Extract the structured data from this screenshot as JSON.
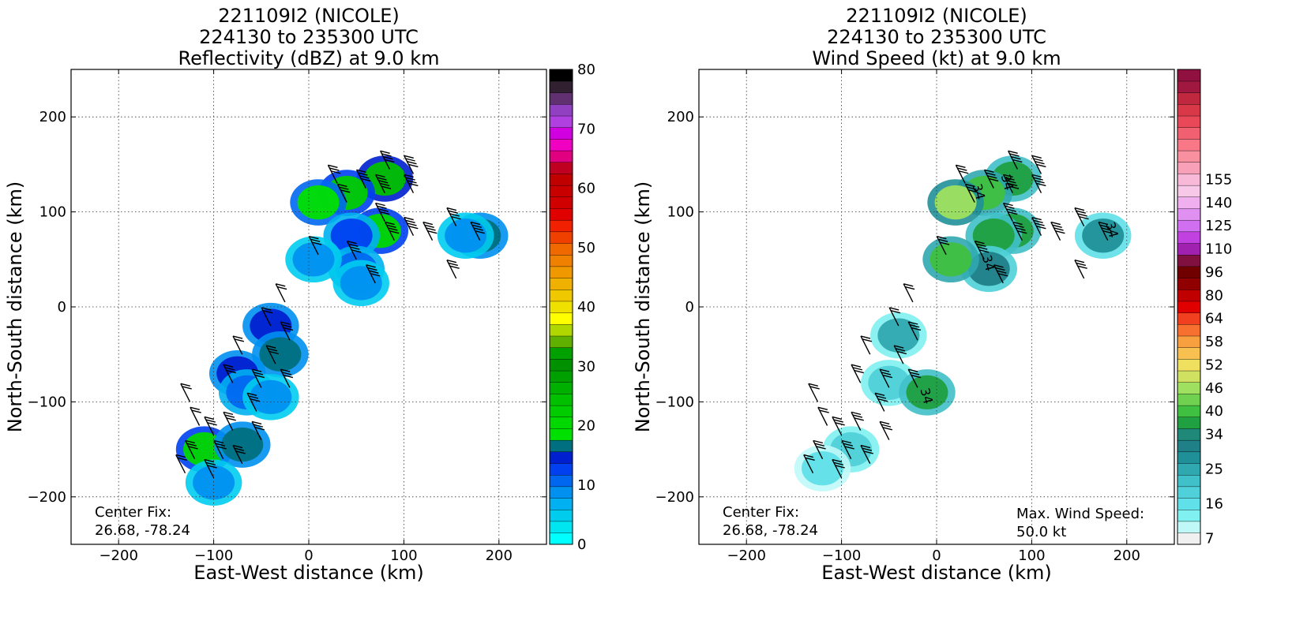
{
  "chart_data": [
    {
      "type": "heatmap",
      "title": [
        "221109I2 (NICOLE)",
        "224130 to 235300 UTC",
        "Reflectivity (dBZ) at 9.0 km"
      ],
      "xlabel": "East-West distance (km)",
      "ylabel": "North-South distance (km)",
      "xlim": [
        -250,
        250
      ],
      "ylim": [
        -250,
        250
      ],
      "xticks": [
        -200,
        -100,
        0,
        100,
        200
      ],
      "yticks": [
        -200,
        -100,
        0,
        100,
        200
      ],
      "xtick_labels": [
        "−200",
        "−100",
        "0",
        "100",
        "200"
      ],
      "ytick_labels": [
        "−200",
        "−100",
        "0",
        "100",
        "200"
      ],
      "grid": true,
      "annotations": [
        "Center Fix:",
        "26.68, -78.24"
      ],
      "colorbar": {
        "min": 0,
        "max": 80,
        "ticks": [
          0,
          10,
          20,
          30,
          40,
          50,
          60,
          70,
          80
        ],
        "labels": [
          "0",
          "10",
          "20",
          "30",
          "40",
          "50",
          "60",
          "70",
          "80"
        ],
        "colors": [
          "#00ffff",
          "#00e6f0",
          "#00ccee",
          "#00b0f0",
          "#0090f0",
          "#0068f0",
          "#0040f0",
          "#0020d0",
          "#007080",
          "#00e000",
          "#00d800",
          "#00cc00",
          "#00c000",
          "#00b000",
          "#00a000",
          "#009000",
          "#00a000",
          "#60b000",
          "#b0d800",
          "#ffff00",
          "#f0e000",
          "#f0c800",
          "#f0b000",
          "#f09800",
          "#f08000",
          "#f06800",
          "#f04000",
          "#f02000",
          "#e00000",
          "#d00000",
          "#c80000",
          "#c00000",
          "#c00020",
          "#e00080",
          "#f000c0",
          "#d000e0",
          "#b040e0",
          "#9040c0",
          "#603070",
          "#302030",
          "#000000"
        ]
      },
      "regions": [
        {
          "x": 80,
          "y": 135,
          "v": 25
        },
        {
          "x": 40,
          "y": 120,
          "v": 22
        },
        {
          "x": 10,
          "y": 110,
          "v": 18
        },
        {
          "x": 75,
          "y": 80,
          "v": 20
        },
        {
          "x": 45,
          "y": 75,
          "v": 12
        },
        {
          "x": 180,
          "y": 75,
          "v": 16
        },
        {
          "x": 165,
          "y": 75,
          "v": 8
        },
        {
          "x": 50,
          "y": 40,
          "v": 10
        },
        {
          "x": 55,
          "y": 25,
          "v": 8
        },
        {
          "x": 5,
          "y": 50,
          "v": 8
        },
        {
          "x": -40,
          "y": -20,
          "v": 14
        },
        {
          "x": -30,
          "y": -50,
          "v": 16
        },
        {
          "x": -75,
          "y": -70,
          "v": 14
        },
        {
          "x": -65,
          "y": -90,
          "v": 10
        },
        {
          "x": -40,
          "y": -95,
          "v": 8
        },
        {
          "x": -110,
          "y": -150,
          "v": 20
        },
        {
          "x": -70,
          "y": -145,
          "v": 16
        },
        {
          "x": -100,
          "y": -185,
          "v": 8
        }
      ],
      "barbs": [
        {
          "x": 85,
          "y": 145,
          "s": 40
        },
        {
          "x": 110,
          "y": 140,
          "s": 40
        },
        {
          "x": 110,
          "y": 120,
          "s": 40
        },
        {
          "x": 80,
          "y": 120,
          "s": 45
        },
        {
          "x": 60,
          "y": 125,
          "s": 40
        },
        {
          "x": 30,
          "y": 130,
          "s": 30
        },
        {
          "x": 40,
          "y": 110,
          "s": 30
        },
        {
          "x": 80,
          "y": 90,
          "s": 40
        },
        {
          "x": 90,
          "y": 70,
          "s": 35
        },
        {
          "x": 110,
          "y": 75,
          "s": 35
        },
        {
          "x": 130,
          "y": 70,
          "s": 35
        },
        {
          "x": 155,
          "y": 85,
          "s": 35
        },
        {
          "x": 180,
          "y": 70,
          "s": 40
        },
        {
          "x": 50,
          "y": 50,
          "s": 35
        },
        {
          "x": 70,
          "y": 25,
          "s": 35
        },
        {
          "x": 10,
          "y": 55,
          "s": 30
        },
        {
          "x": 155,
          "y": 30,
          "s": 30
        },
        {
          "x": -25,
          "y": 5,
          "s": 20
        },
        {
          "x": -40,
          "y": -20,
          "s": 20
        },
        {
          "x": -20,
          "y": -35,
          "s": 25
        },
        {
          "x": -35,
          "y": -60,
          "s": 25
        },
        {
          "x": -70,
          "y": -50,
          "s": 20
        },
        {
          "x": -80,
          "y": -80,
          "s": 25
        },
        {
          "x": -50,
          "y": -85,
          "s": 25
        },
        {
          "x": -20,
          "y": -85,
          "s": 25
        },
        {
          "x": -55,
          "y": -110,
          "s": 25
        },
        {
          "x": -125,
          "y": -100,
          "s": 20
        },
        {
          "x": -115,
          "y": -125,
          "s": 20
        },
        {
          "x": -100,
          "y": -135,
          "s": 25
        },
        {
          "x": -80,
          "y": -130,
          "s": 25
        },
        {
          "x": -50,
          "y": -140,
          "s": 30
        },
        {
          "x": -120,
          "y": -160,
          "s": 25
        },
        {
          "x": -90,
          "y": -160,
          "s": 30
        },
        {
          "x": -70,
          "y": -165,
          "s": 30
        },
        {
          "x": -100,
          "y": -180,
          "s": 25
        },
        {
          "x": -130,
          "y": -175,
          "s": 20
        }
      ]
    },
    {
      "type": "heatmap",
      "title": [
        "221109I2 (NICOLE)",
        "224130 to 235300 UTC",
        "Wind Speed (kt) at 9.0 km"
      ],
      "xlabel": "East-West distance (km)",
      "ylabel": "North-South distance (km)",
      "xlim": [
        -250,
        250
      ],
      "ylim": [
        -250,
        250
      ],
      "xticks": [
        -200,
        -100,
        0,
        100,
        200
      ],
      "yticks": [
        -200,
        -100,
        0,
        100,
        200
      ],
      "xtick_labels": [
        "−200",
        "−100",
        "0",
        "100",
        "200"
      ],
      "ytick_labels": [
        "−200",
        "−100",
        "0",
        "100",
        "200"
      ],
      "grid": true,
      "annotations": [
        "Center Fix:",
        "26.68, -78.24",
        "Max. Wind Speed:",
        "50.0 kt"
      ],
      "contour_label": "34",
      "colorbar": {
        "labels": [
          "7",
          "16",
          "25",
          "34",
          "40",
          "46",
          "52",
          "58",
          "64",
          "80",
          "96",
          "110",
          "125",
          "140",
          "155"
        ],
        "label_positions": [
          0,
          3,
          6,
          9,
          11,
          13,
          15,
          17,
          19,
          21,
          23,
          25,
          27,
          29,
          31
        ],
        "colors": [
          "#f0f0f0",
          "#c0f8f8",
          "#80f0f0",
          "#60e0e8",
          "#50d0d8",
          "#40c0c8",
          "#30a8b0",
          "#209098",
          "#208088",
          "#208878",
          "#20a040",
          "#40c040",
          "#70d050",
          "#a0e060",
          "#d0e060",
          "#f0e060",
          "#f8c050",
          "#f8a040",
          "#f87030",
          "#f04020",
          "#e00000",
          "#c00000",
          "#900000",
          "#700000",
          "#801040",
          "#a020b0",
          "#c040e0",
          "#d070f0",
          "#e090f0",
          "#f0b0f0",
          "#f8c8e8",
          "#f8b8d8",
          "#f8a0b8",
          "#f890a0",
          "#f87888",
          "#f06070",
          "#e84858",
          "#d83848",
          "#c02840",
          "#a01840",
          "#901040"
        ]
      },
      "regions": [
        {
          "x": 80,
          "y": 135,
          "v": 38
        },
        {
          "x": 50,
          "y": 120,
          "v": 40
        },
        {
          "x": 20,
          "y": 110,
          "v": 46
        },
        {
          "x": 80,
          "y": 80,
          "v": 38
        },
        {
          "x": 60,
          "y": 75,
          "v": 36
        },
        {
          "x": 175,
          "y": 75,
          "v": 28
        },
        {
          "x": 55,
          "y": 40,
          "v": 30
        },
        {
          "x": 15,
          "y": 50,
          "v": 40
        },
        {
          "x": -40,
          "y": -30,
          "v": 24
        },
        {
          "x": -50,
          "y": -80,
          "v": 20
        },
        {
          "x": -10,
          "y": -90,
          "v": 36
        },
        {
          "x": -90,
          "y": -150,
          "v": 20
        },
        {
          "x": -120,
          "y": -170,
          "v": 16
        }
      ],
      "barbs": [
        {
          "x": 85,
          "y": 145,
          "s": 40
        },
        {
          "x": 110,
          "y": 140,
          "s": 40
        },
        {
          "x": 110,
          "y": 120,
          "s": 40
        },
        {
          "x": 80,
          "y": 120,
          "s": 45
        },
        {
          "x": 60,
          "y": 125,
          "s": 40
        },
        {
          "x": 30,
          "y": 130,
          "s": 30
        },
        {
          "x": 40,
          "y": 110,
          "s": 30
        },
        {
          "x": 80,
          "y": 90,
          "s": 40
        },
        {
          "x": 90,
          "y": 70,
          "s": 35
        },
        {
          "x": 110,
          "y": 75,
          "s": 35
        },
        {
          "x": 130,
          "y": 70,
          "s": 35
        },
        {
          "x": 155,
          "y": 85,
          "s": 35
        },
        {
          "x": 180,
          "y": 70,
          "s": 40
        },
        {
          "x": 50,
          "y": 50,
          "s": 35
        },
        {
          "x": 70,
          "y": 25,
          "s": 35
        },
        {
          "x": 10,
          "y": 55,
          "s": 30
        },
        {
          "x": 155,
          "y": 30,
          "s": 30
        },
        {
          "x": -25,
          "y": 5,
          "s": 20
        },
        {
          "x": -40,
          "y": -20,
          "s": 20
        },
        {
          "x": -20,
          "y": -35,
          "s": 25
        },
        {
          "x": -35,
          "y": -60,
          "s": 25
        },
        {
          "x": -70,
          "y": -50,
          "s": 20
        },
        {
          "x": -80,
          "y": -80,
          "s": 25
        },
        {
          "x": -50,
          "y": -85,
          "s": 25
        },
        {
          "x": -20,
          "y": -85,
          "s": 25
        },
        {
          "x": -55,
          "y": -110,
          "s": 25
        },
        {
          "x": -125,
          "y": -100,
          "s": 20
        },
        {
          "x": -115,
          "y": -125,
          "s": 20
        },
        {
          "x": -100,
          "y": -135,
          "s": 25
        },
        {
          "x": -80,
          "y": -130,
          "s": 25
        },
        {
          "x": -50,
          "y": -140,
          "s": 30
        },
        {
          "x": -120,
          "y": -160,
          "s": 25
        },
        {
          "x": -90,
          "y": -160,
          "s": 30
        },
        {
          "x": -70,
          "y": -165,
          "s": 30
        },
        {
          "x": -100,
          "y": -180,
          "s": 25
        },
        {
          "x": -130,
          "y": -175,
          "s": 20
        }
      ]
    }
  ]
}
